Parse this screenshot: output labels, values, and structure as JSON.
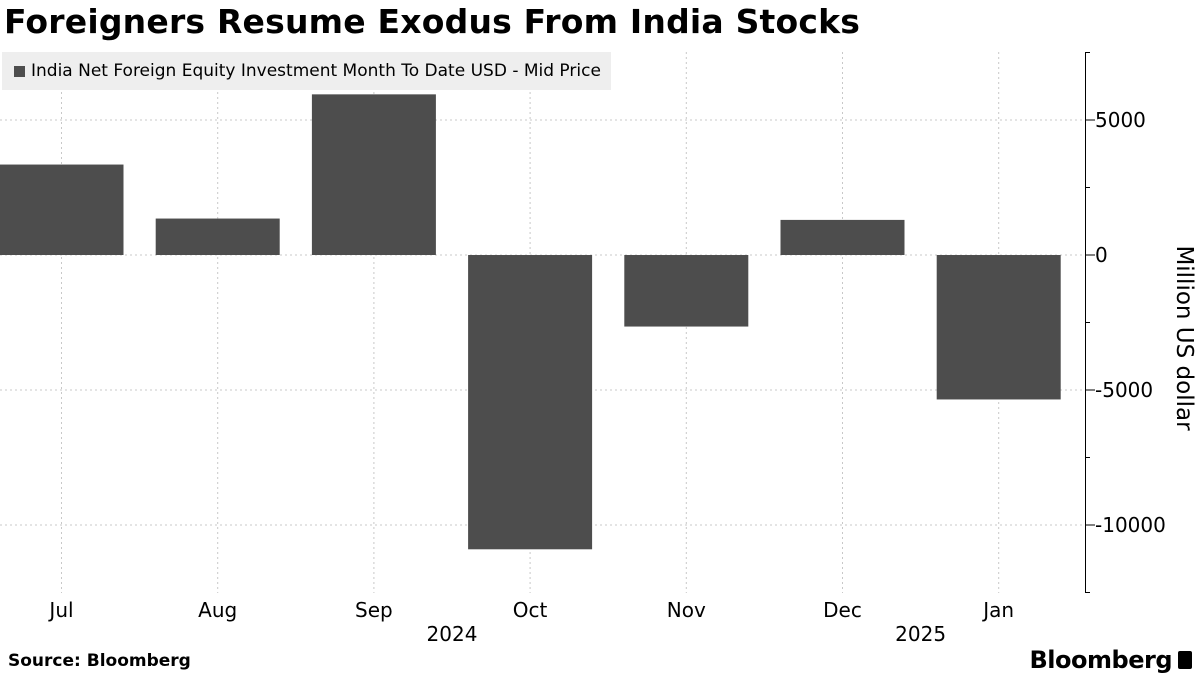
{
  "title": "Foreigners Resume Exodus From India Stocks",
  "source": "Source: Bloomberg",
  "brand": "Bloomberg",
  "colors": {
    "bar": "#4d4d4d",
    "grid": "#c8c8c8",
    "axis": "#000000",
    "legend_bg": "#eeeeee"
  },
  "chart_data": {
    "type": "bar",
    "legend": {
      "position": "top-left",
      "entries": [
        "India Net Foreign Equity Investment Month To Date USD - Mid Price"
      ]
    },
    "categories": [
      "Jul",
      "Aug",
      "Sep",
      "Oct",
      "Nov",
      "Dec",
      "Jan"
    ],
    "year_labels": [
      {
        "after": "Sep",
        "label": "2024"
      },
      {
        "after": "Dec",
        "label": "2025"
      }
    ],
    "series": [
      {
        "name": "India Net Foreign Equity Investment Month To Date USD - Mid Price",
        "values": [
          3350,
          1350,
          5950,
          -10900,
          -2650,
          1300,
          -5350
        ]
      }
    ],
    "ylabel": "Million US dollar",
    "y_ticks": [
      5000,
      0,
      -5000,
      -10000
    ],
    "ylim": [
      -12500,
      7500
    ],
    "y_axis_side": "right",
    "grid": true
  }
}
